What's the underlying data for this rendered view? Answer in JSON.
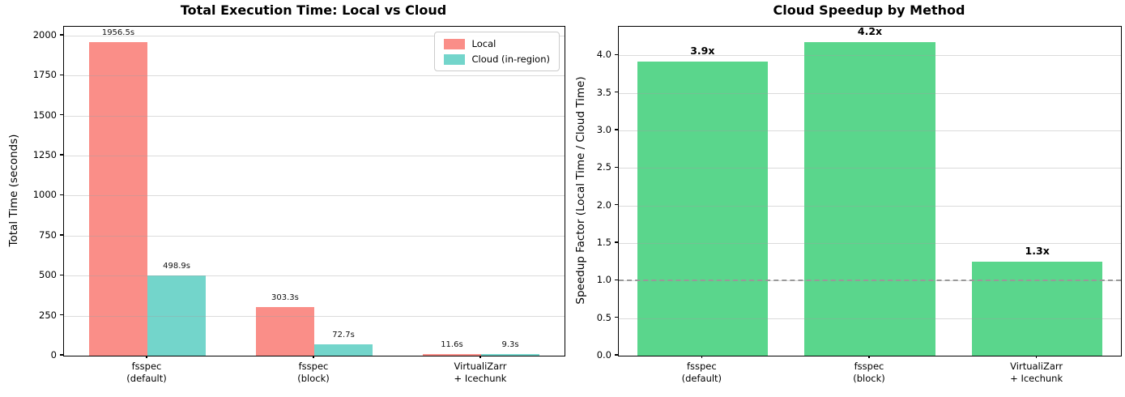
{
  "figure": {
    "background": "#ffffff",
    "spine_color": "#000000",
    "grid_color": "#dcdcdc"
  },
  "chart_data": [
    {
      "type": "bar",
      "title": "Total Execution Time: Local vs Cloud",
      "ylabel": "Total Time (seconds)",
      "xlabel": "",
      "categories": [
        [
          "fsspec",
          "(default)"
        ],
        [
          "fsspec",
          "(block)"
        ],
        [
          "VirtualiZarr",
          "+ Icechunk"
        ]
      ],
      "series": [
        {
          "name": "Local",
          "color": "#FA8E88",
          "values": [
            1956.5,
            303.3,
            11.6
          ],
          "value_labels": [
            "1956.5s",
            "303.3s",
            "11.6s"
          ]
        },
        {
          "name": "Cloud (in-region)",
          "color": "#73D5CB",
          "values": [
            498.9,
            72.7,
            9.3
          ],
          "value_labels": [
            "498.9s",
            "72.7s",
            "9.3s"
          ]
        }
      ],
      "ylim": [
        0,
        2055
      ],
      "yticks": [
        {
          "v": 0,
          "l": "0"
        },
        {
          "v": 250,
          "l": "250"
        },
        {
          "v": 500,
          "l": "500"
        },
        {
          "v": 750,
          "l": "750"
        },
        {
          "v": 1000,
          "l": "1000"
        },
        {
          "v": 1250,
          "l": "1250"
        },
        {
          "v": 1500,
          "l": "1500"
        },
        {
          "v": 1750,
          "l": "1750"
        },
        {
          "v": 2000,
          "l": "2000"
        }
      ],
      "grid": true,
      "legend": {
        "position": "upper-right",
        "entries": [
          "Local",
          "Cloud (in-region)"
        ]
      }
    },
    {
      "type": "bar",
      "title": "Cloud Speedup by Method",
      "ylabel": "Speedup Factor (Local Time / Cloud Time)",
      "xlabel": "",
      "categories": [
        [
          "fsspec",
          "(default)"
        ],
        [
          "fsspec",
          "(block)"
        ],
        [
          "VirtualiZarr",
          "+ Icechunk"
        ]
      ],
      "series": [
        {
          "name": "Speedup",
          "color": "#5AD68C",
          "values": [
            3.92,
            4.17,
            1.25
          ],
          "value_labels": [
            "3.9x",
            "4.2x",
            "1.3x"
          ]
        }
      ],
      "ylim": [
        0,
        4.38
      ],
      "yticks": [
        {
          "v": 0,
          "l": "0.0"
        },
        {
          "v": 0.5,
          "l": "0.5"
        },
        {
          "v": 1,
          "l": "1.0"
        },
        {
          "v": 1.5,
          "l": "1.5"
        },
        {
          "v": 2,
          "l": "2.0"
        },
        {
          "v": 2.5,
          "l": "2.5"
        },
        {
          "v": 3,
          "l": "3.0"
        },
        {
          "v": 3.5,
          "l": "3.5"
        },
        {
          "v": 4,
          "l": "4.0"
        }
      ],
      "grid": true,
      "reference_line": {
        "value": 1.0,
        "color": "#999999",
        "style": "dashed"
      }
    }
  ]
}
